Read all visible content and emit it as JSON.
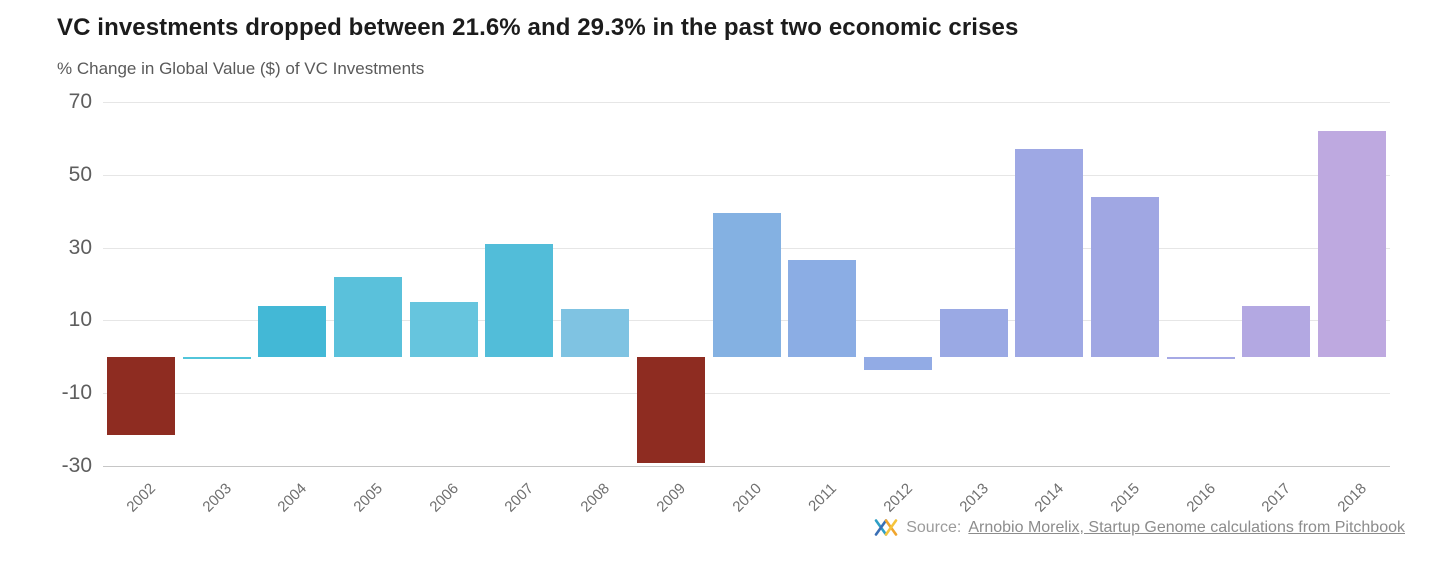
{
  "title": "VC investments dropped between 21.6% and 29.3% in the past two economic crises",
  "subtitle": "% Change in Global Value ($) of VC Investments",
  "source": {
    "prefix": "Source:",
    "link": "Arnobio Morelix, Startup Genome calculations from Pitchbook"
  },
  "colors": {
    "negative_bar": "#8e2c21",
    "grid": "#e6e6e6",
    "axis_line": "#c6c6c6",
    "axis_text": "#5e5e5e"
  },
  "chart_data": {
    "type": "bar",
    "title": "VC investments dropped between 21.6% and 29.3% in the past two economic crises",
    "subtitle": "% Change in Global Value ($) of VC Investments",
    "xlabel": "",
    "ylabel": "% Change in Global Value ($) of VC Investments",
    "ylim": [
      -30,
      70
    ],
    "yticks": [
      70,
      50,
      30,
      10,
      -10,
      -30
    ],
    "grid": "horizontal",
    "legend": "none",
    "categories": [
      "2002",
      "2003",
      "2004",
      "2005",
      "2006",
      "2007",
      "2008",
      "2009",
      "2010",
      "2011",
      "2012",
      "2013",
      "2014",
      "2015",
      "2016",
      "2017",
      "2018"
    ],
    "values": [
      -21.6,
      -0.5,
      14,
      22,
      15,
      31,
      13,
      -29.3,
      39.5,
      26.5,
      -3.5,
      13,
      57,
      44,
      -0.7,
      14,
      62
    ],
    "bar_colors": [
      "#8e2c21",
      "#52c5da",
      "#43b8d6",
      "#5ac1db",
      "#66c5de",
      "#52bdd9",
      "#7fc3e2",
      "#8e2c21",
      "#84b1e2",
      "#8bade4",
      "#92abe5",
      "#9aa9e4",
      "#9ea8e4",
      "#a0a7e3",
      "#a6a9e5",
      "#b3a8e2",
      "#bea9e0"
    ],
    "annotations": []
  }
}
